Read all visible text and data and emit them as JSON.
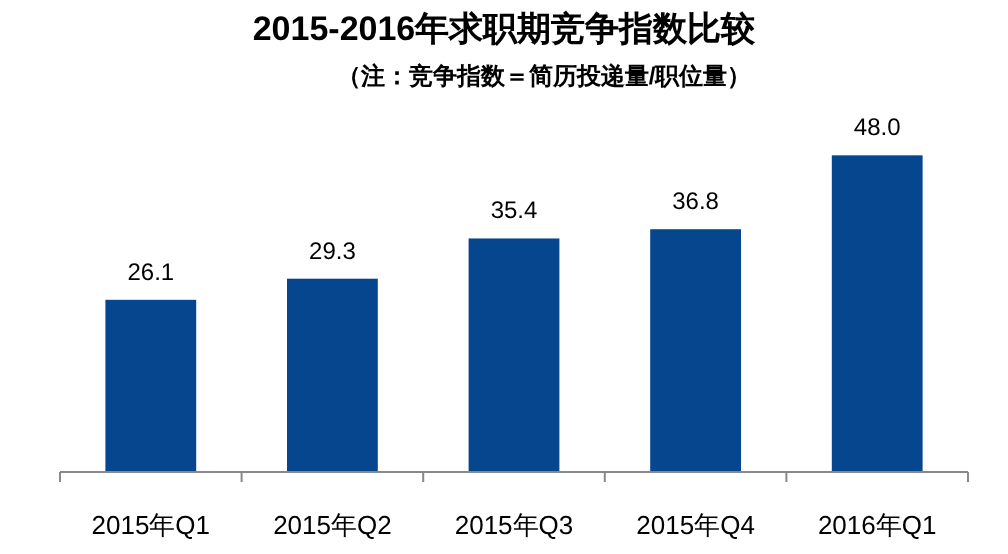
{
  "chart_data": {
    "type": "bar",
    "title": "2015-2016年求职期竞争指数比较",
    "subtitle": "（注：竞争指数＝简历投递量/职位量）",
    "categories": [
      "2015年Q1",
      "2015年Q2",
      "2015年Q3",
      "2015年Q4",
      "2016年Q1"
    ],
    "values": [
      26.1,
      29.3,
      35.4,
      36.8,
      48.0
    ],
    "value_labels": [
      "26.1",
      "29.3",
      "35.4",
      "36.8",
      "48.0"
    ],
    "color": "#05468f",
    "tick_labels": "x"
  }
}
